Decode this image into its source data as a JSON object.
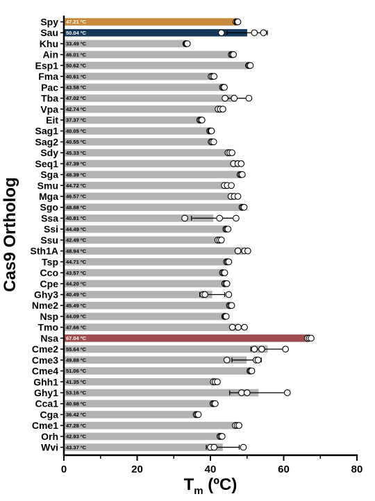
{
  "chart_data": {
    "type": "bar",
    "orientation": "horizontal",
    "xlabel": "T",
    "xlabel_sub": "m",
    "xlabel_unit": " (ºC)",
    "ylabel": "Cas9 Ortholog",
    "xlim": [
      0,
      80
    ],
    "xticks": [
      "0",
      "20",
      "40",
      "60",
      "80"
    ],
    "colors": {
      "default": "#b3b3b3",
      "highlight": {
        "Spy": "#c8893a",
        "Sau": "#173a5c",
        "Nsa": "#a04c4c"
      }
    },
    "categories": [
      "Spy",
      "Sau",
      "Khu",
      "Ain",
      "Esp1",
      "Fma",
      "Pac",
      "Tba",
      "Vpa",
      "Eit",
      "Sag1",
      "Sag2",
      "Sdy",
      "Seq1",
      "Sga",
      "Smu",
      "Mga",
      "Sgo",
      "Ssa",
      "Ssi",
      "Ssu",
      "Sth1A",
      "Tsp",
      "Cco",
      "Cpe",
      "Ghy3",
      "Nme2",
      "Nsp",
      "Tmo",
      "Nsa",
      "Cme2",
      "Cme3",
      "Cme4",
      "Ghh1",
      "Ghy1",
      "Cca1",
      "Cga",
      "Cme1",
      "Orh",
      "Wvi"
    ],
    "value_labels": [
      "47.21 ºC",
      "50.04 ºC",
      "33.49 ºC",
      "46.01 ºC",
      "50.62 ºC",
      "40.61 ºC",
      "43.58 ºC",
      "47.02 ºC",
      "42.74 ºC",
      "37.37 ºC",
      "40.05 ºC",
      "40.55 ºC",
      "45.33 ºC",
      "47.39 ºC",
      "48.39 ºC",
      "44.72 ºC",
      "46.57 ºC",
      "48.88 ºC",
      "40.81 ºC",
      "44.49 ºC",
      "42.49 ºC",
      "48.94 ºC",
      "44.71 ºC",
      "43.57 ºC",
      "44.20 ºC",
      "40.49 ºC",
      "45.49 ºC",
      "44.09 ºC",
      "47.66 ºC",
      "67.04 ºC",
      "55.64 ºC",
      "49.88 ºC",
      "51.06 ºC",
      "41.35 ºC",
      "53.16 ºC",
      "40.98 ºC",
      "36.42 ºC",
      "47.28 ºC",
      "42.93 ºC",
      "43.37 ºC"
    ],
    "values": [
      47.21,
      50.04,
      33.49,
      46.01,
      50.62,
      40.61,
      43.58,
      47.02,
      42.74,
      37.37,
      40.05,
      40.55,
      45.33,
      47.39,
      48.39,
      44.72,
      46.57,
      48.88,
      40.81,
      44.49,
      42.49,
      48.94,
      44.71,
      43.57,
      44.2,
      40.49,
      45.49,
      44.09,
      47.66,
      67.04,
      55.64,
      49.88,
      51.06,
      41.35,
      53.16,
      40.98,
      36.42,
      47.28,
      42.93,
      43.37
    ],
    "error": [
      0.4,
      5.5,
      0.2,
      0.4,
      0.3,
      0.4,
      0.3,
      3.5,
      0.6,
      0.3,
      0.3,
      0.3,
      0.5,
      1.0,
      0.3,
      0.8,
      0.9,
      0.3,
      6.0,
      0.3,
      0.5,
      1.2,
      0.3,
      0.3,
      0.3,
      3.4,
      0.3,
      0.2,
      1.5,
      0.5,
      4.6,
      4.0,
      0.3,
      0.5,
      7.9,
      0.3,
      0.3,
      0.6,
      0.3,
      4.5
    ],
    "points": [
      [
        47.0,
        47.3,
        47.5
      ],
      [
        43.0,
        52.0,
        54.5
      ],
      [
        33.3,
        33.5,
        33.7
      ],
      [
        45.7,
        46.0,
        46.3
      ],
      [
        50.4,
        50.6,
        50.9
      ],
      [
        40.2,
        40.6,
        41.0
      ],
      [
        43.3,
        43.6,
        43.8
      ],
      [
        44.0,
        46.5,
        50.5
      ],
      [
        42.1,
        42.7,
        43.4
      ],
      [
        37.1,
        37.4,
        37.7
      ],
      [
        39.8,
        40.1,
        40.3
      ],
      [
        40.2,
        40.5,
        40.9
      ],
      [
        44.8,
        45.3,
        45.9
      ],
      [
        46.3,
        47.5,
        48.4
      ],
      [
        48.1,
        48.4,
        48.7
      ],
      [
        43.8,
        44.6,
        45.7
      ],
      [
        45.6,
        46.5,
        47.5
      ],
      [
        48.6,
        48.9,
        49.2
      ],
      [
        33.0,
        42.5,
        47.0
      ],
      [
        44.2,
        44.5,
        44.8
      ],
      [
        42.0,
        42.5,
        43.0
      ],
      [
        47.5,
        49.3,
        50.2
      ],
      [
        44.4,
        44.7,
        45.0
      ],
      [
        43.3,
        43.6,
        43.9
      ],
      [
        43.9,
        44.2,
        44.5
      ],
      [
        38.0,
        38.5,
        45.0
      ],
      [
        45.2,
        45.5,
        45.8
      ],
      [
        43.9,
        44.1,
        44.3
      ],
      [
        46.0,
        47.6,
        49.3
      ],
      [
        66.5,
        67.0,
        67.5
      ],
      [
        52.0,
        54.0,
        60.5
      ],
      [
        44.5,
        52.5,
        53.0
      ],
      [
        50.8,
        51.0,
        51.3
      ],
      [
        40.8,
        41.3,
        41.9
      ],
      [
        48.5,
        50.0,
        61.0
      ],
      [
        40.7,
        41.0,
        41.3
      ],
      [
        36.1,
        36.4,
        36.7
      ],
      [
        46.8,
        47.3,
        47.8
      ],
      [
        42.6,
        42.9,
        43.2
      ],
      [
        40.0,
        41.0,
        49.0
      ]
    ]
  }
}
